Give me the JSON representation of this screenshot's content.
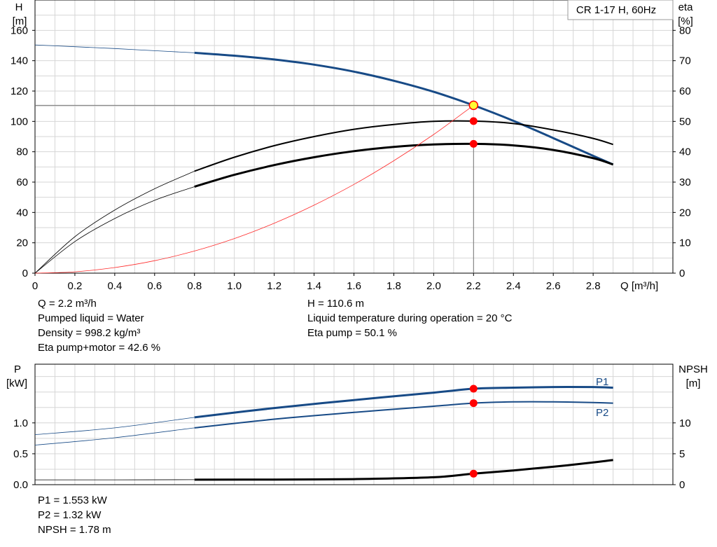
{
  "chart_data": [
    {
      "type": "line",
      "title": "CR 1-17 H, 60Hz",
      "xlabel": "Q [m³/h]",
      "ylabel_left": {
        "name": "H",
        "unit": "[m]"
      },
      "ylabel_right": {
        "name": "eta",
        "unit": "[%]"
      },
      "xlim": [
        0,
        3.2
      ],
      "ylim_left": [
        0,
        180
      ],
      "ylim_right": [
        0,
        90
      ],
      "x_ticks": [
        "0",
        "0.2",
        "0.4",
        "0.6",
        "0.8",
        "1.0",
        "1.2",
        "1.4",
        "1.6",
        "1.8",
        "2.0",
        "2.2",
        "2.4",
        "2.6",
        "2.8"
      ],
      "y_ticks_left": [
        "0",
        "20",
        "40",
        "60",
        "80",
        "100",
        "120",
        "140",
        "160"
      ],
      "y_ticks_right": [
        "0",
        "10",
        "20",
        "30",
        "40",
        "50",
        "60",
        "70",
        "80"
      ],
      "grid": true,
      "series": [
        {
          "axis": "left",
          "color": "#174a86",
          "thin_x": [
            0,
            0.8
          ],
          "thick_x": [
            0.8,
            2.9
          ],
          "x": [
            0,
            0.2,
            0.4,
            0.6,
            0.8,
            1.0,
            1.2,
            1.4,
            1.6,
            1.8,
            2.0,
            2.2,
            2.4,
            2.6,
            2.8,
            2.9
          ],
          "y": [
            150.4,
            149.2,
            148.0,
            146.6,
            145.2,
            143.3,
            140.8,
            137.4,
            132.8,
            126.8,
            119.5,
            110.6,
            100.4,
            89.0,
            77.3,
            71.6
          ]
        },
        {
          "axis": "right",
          "color": "#000000",
          "thin_x": [
            0,
            0.8
          ],
          "thick_x": [
            0.8,
            2.9
          ],
          "x": [
            0,
            0.2,
            0.4,
            0.6,
            0.8,
            1.0,
            1.2,
            1.4,
            1.6,
            1.8,
            2.0,
            2.2,
            2.4,
            2.6,
            2.8,
            2.9
          ],
          "y": [
            0,
            12.0,
            20.8,
            27.8,
            33.6,
            38.2,
            42.0,
            45.0,
            47.4,
            49.0,
            50.0,
            50.1,
            49.3,
            47.2,
            44.4,
            42.4
          ]
        },
        {
          "axis": "right",
          "color": "#000000",
          "thin_x": [
            0,
            0.8
          ],
          "thick_x": [
            0.8,
            2.9
          ],
          "x": [
            0,
            0.2,
            0.4,
            0.6,
            0.8,
            1.0,
            1.2,
            1.4,
            1.6,
            1.8,
            2.0,
            2.2,
            2.4,
            2.6,
            2.8,
            2.9
          ],
          "y": [
            0,
            10.4,
            18.0,
            24.0,
            28.5,
            32.4,
            35.6,
            38.2,
            40.2,
            41.6,
            42.4,
            42.6,
            42.1,
            40.6,
            37.9,
            35.8
          ]
        },
        {
          "axis": "left",
          "color": "#ff2a2a",
          "thin_x": [
            0,
            2.2
          ],
          "thick_x": [],
          "x": [
            0,
            0.2,
            0.4,
            0.6,
            0.8,
            1.0,
            1.2,
            1.4,
            1.6,
            1.8,
            2.0,
            2.2
          ],
          "y": [
            0,
            0.9,
            3.7,
            8.2,
            14.6,
            22.8,
            32.9,
            44.8,
            58.5,
            74.1,
            91.4,
            110.6
          ]
        }
      ],
      "operating_point": {
        "x": 2.2,
        "H": 110.6,
        "eta_pump": 50.1,
        "eta_total": 42.6
      }
    },
    {
      "type": "line",
      "ylabel_left": {
        "name": "P",
        "unit": "[kW]"
      },
      "ylabel_right": {
        "name": "NPSH",
        "unit": "[m]"
      },
      "xlim": [
        0,
        3.2
      ],
      "ylim_left": [
        0,
        1.95
      ],
      "ylim_right": [
        0,
        19.5
      ],
      "y_ticks_left": [
        "0.0",
        "0.5",
        "1.0"
      ],
      "y_ticks_right": [
        "0",
        "5",
        "10"
      ],
      "grid": true,
      "series": [
        {
          "name": "P1",
          "axis": "left",
          "color": "#174a86",
          "thin_x": [
            0,
            0.8
          ],
          "thick_x": [
            0.8,
            2.9
          ],
          "x": [
            0,
            0.4,
            0.8,
            1.2,
            1.6,
            2.0,
            2.2,
            2.4,
            2.6,
            2.8,
            2.9
          ],
          "y": [
            0.81,
            0.92,
            1.09,
            1.24,
            1.37,
            1.49,
            1.553,
            1.57,
            1.58,
            1.58,
            1.57
          ]
        },
        {
          "name": "P2",
          "axis": "left",
          "color": "#174a86",
          "thin_x": [
            0,
            0.8
          ],
          "thick_x": [
            0.8,
            2.9
          ],
          "x": [
            0,
            0.4,
            0.8,
            1.2,
            1.6,
            2.0,
            2.2,
            2.4,
            2.6,
            2.8,
            2.9
          ],
          "y": [
            0.64,
            0.76,
            0.92,
            1.06,
            1.17,
            1.27,
            1.32,
            1.34,
            1.34,
            1.33,
            1.32
          ]
        },
        {
          "axis": "right",
          "color": "#000000",
          "thin_x": [
            0,
            0.8
          ],
          "thick_x": [
            0.8,
            2.9
          ],
          "x": [
            0,
            0.4,
            0.8,
            1.2,
            1.6,
            2.0,
            2.2,
            2.4,
            2.6,
            2.8,
            2.9
          ],
          "y": [
            0.78,
            0.78,
            0.8,
            0.83,
            0.9,
            1.2,
            1.78,
            2.3,
            2.9,
            3.6,
            4.0
          ]
        }
      ],
      "operating_point": {
        "x": 2.2,
        "P1": 1.553,
        "P2": 1.32,
        "NPSH": 1.78
      }
    }
  ],
  "info_top_left": [
    "Q = 2.2 m³/h",
    "Pumped liquid = Water",
    "Density = 998.2 kg/m³",
    "Eta pump+motor = 42.6 %"
  ],
  "info_top_right": [
    "H = 110.6 m",
    "Liquid temperature during operation = 20 °C",
    "Eta pump = 50.1 %"
  ],
  "info_bottom": [
    "P1 = 1.553 kW",
    "P2 = 1.32 kW",
    "NPSH = 1.78 m"
  ]
}
